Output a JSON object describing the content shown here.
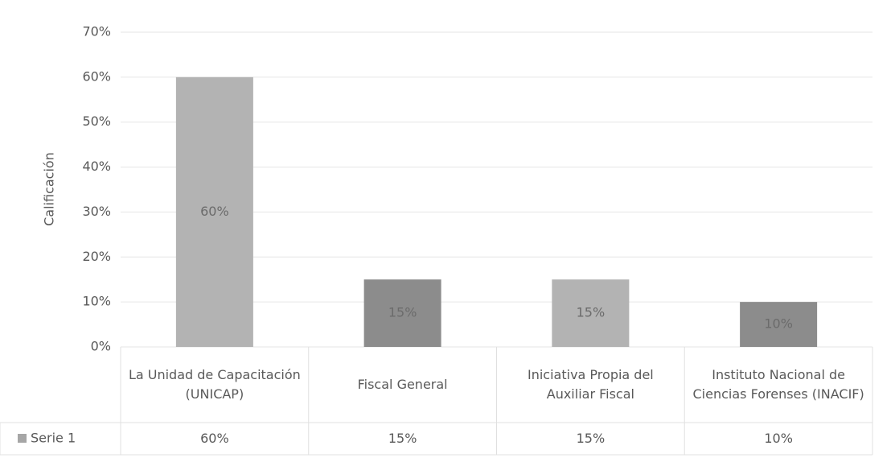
{
  "chart_data": {
    "type": "bar",
    "ylabel": "Calificación",
    "categories": [
      "La Unidad de Capacitación (UNICAP)",
      "Fiscal General",
      "Iniciativa Propia del Auxiliar Fiscal",
      "Instituto Nacional de Ciencias Forenses (INACIF)"
    ],
    "series": [
      {
        "name": "Serie 1",
        "color": "#a6a6a6",
        "colors": [
          "#b3b3b3",
          "#8c8c8c",
          "#b3b3b3",
          "#8c8c8c"
        ],
        "values": [
          60,
          15,
          15,
          10
        ],
        "value_labels": [
          "60%",
          "15%",
          "15%",
          "10%"
        ]
      }
    ],
    "ylim": [
      0,
      70
    ],
    "yticks": [
      {
        "value": 0,
        "label": "0%"
      },
      {
        "value": 10,
        "label": "10%"
      },
      {
        "value": 20,
        "label": "20%"
      },
      {
        "value": 30,
        "label": "30%"
      },
      {
        "value": 40,
        "label": "40%"
      },
      {
        "value": 50,
        "label": "50%"
      },
      {
        "value": 60,
        "label": "60%"
      },
      {
        "value": 70,
        "label": "70%"
      }
    ],
    "grid": true
  }
}
